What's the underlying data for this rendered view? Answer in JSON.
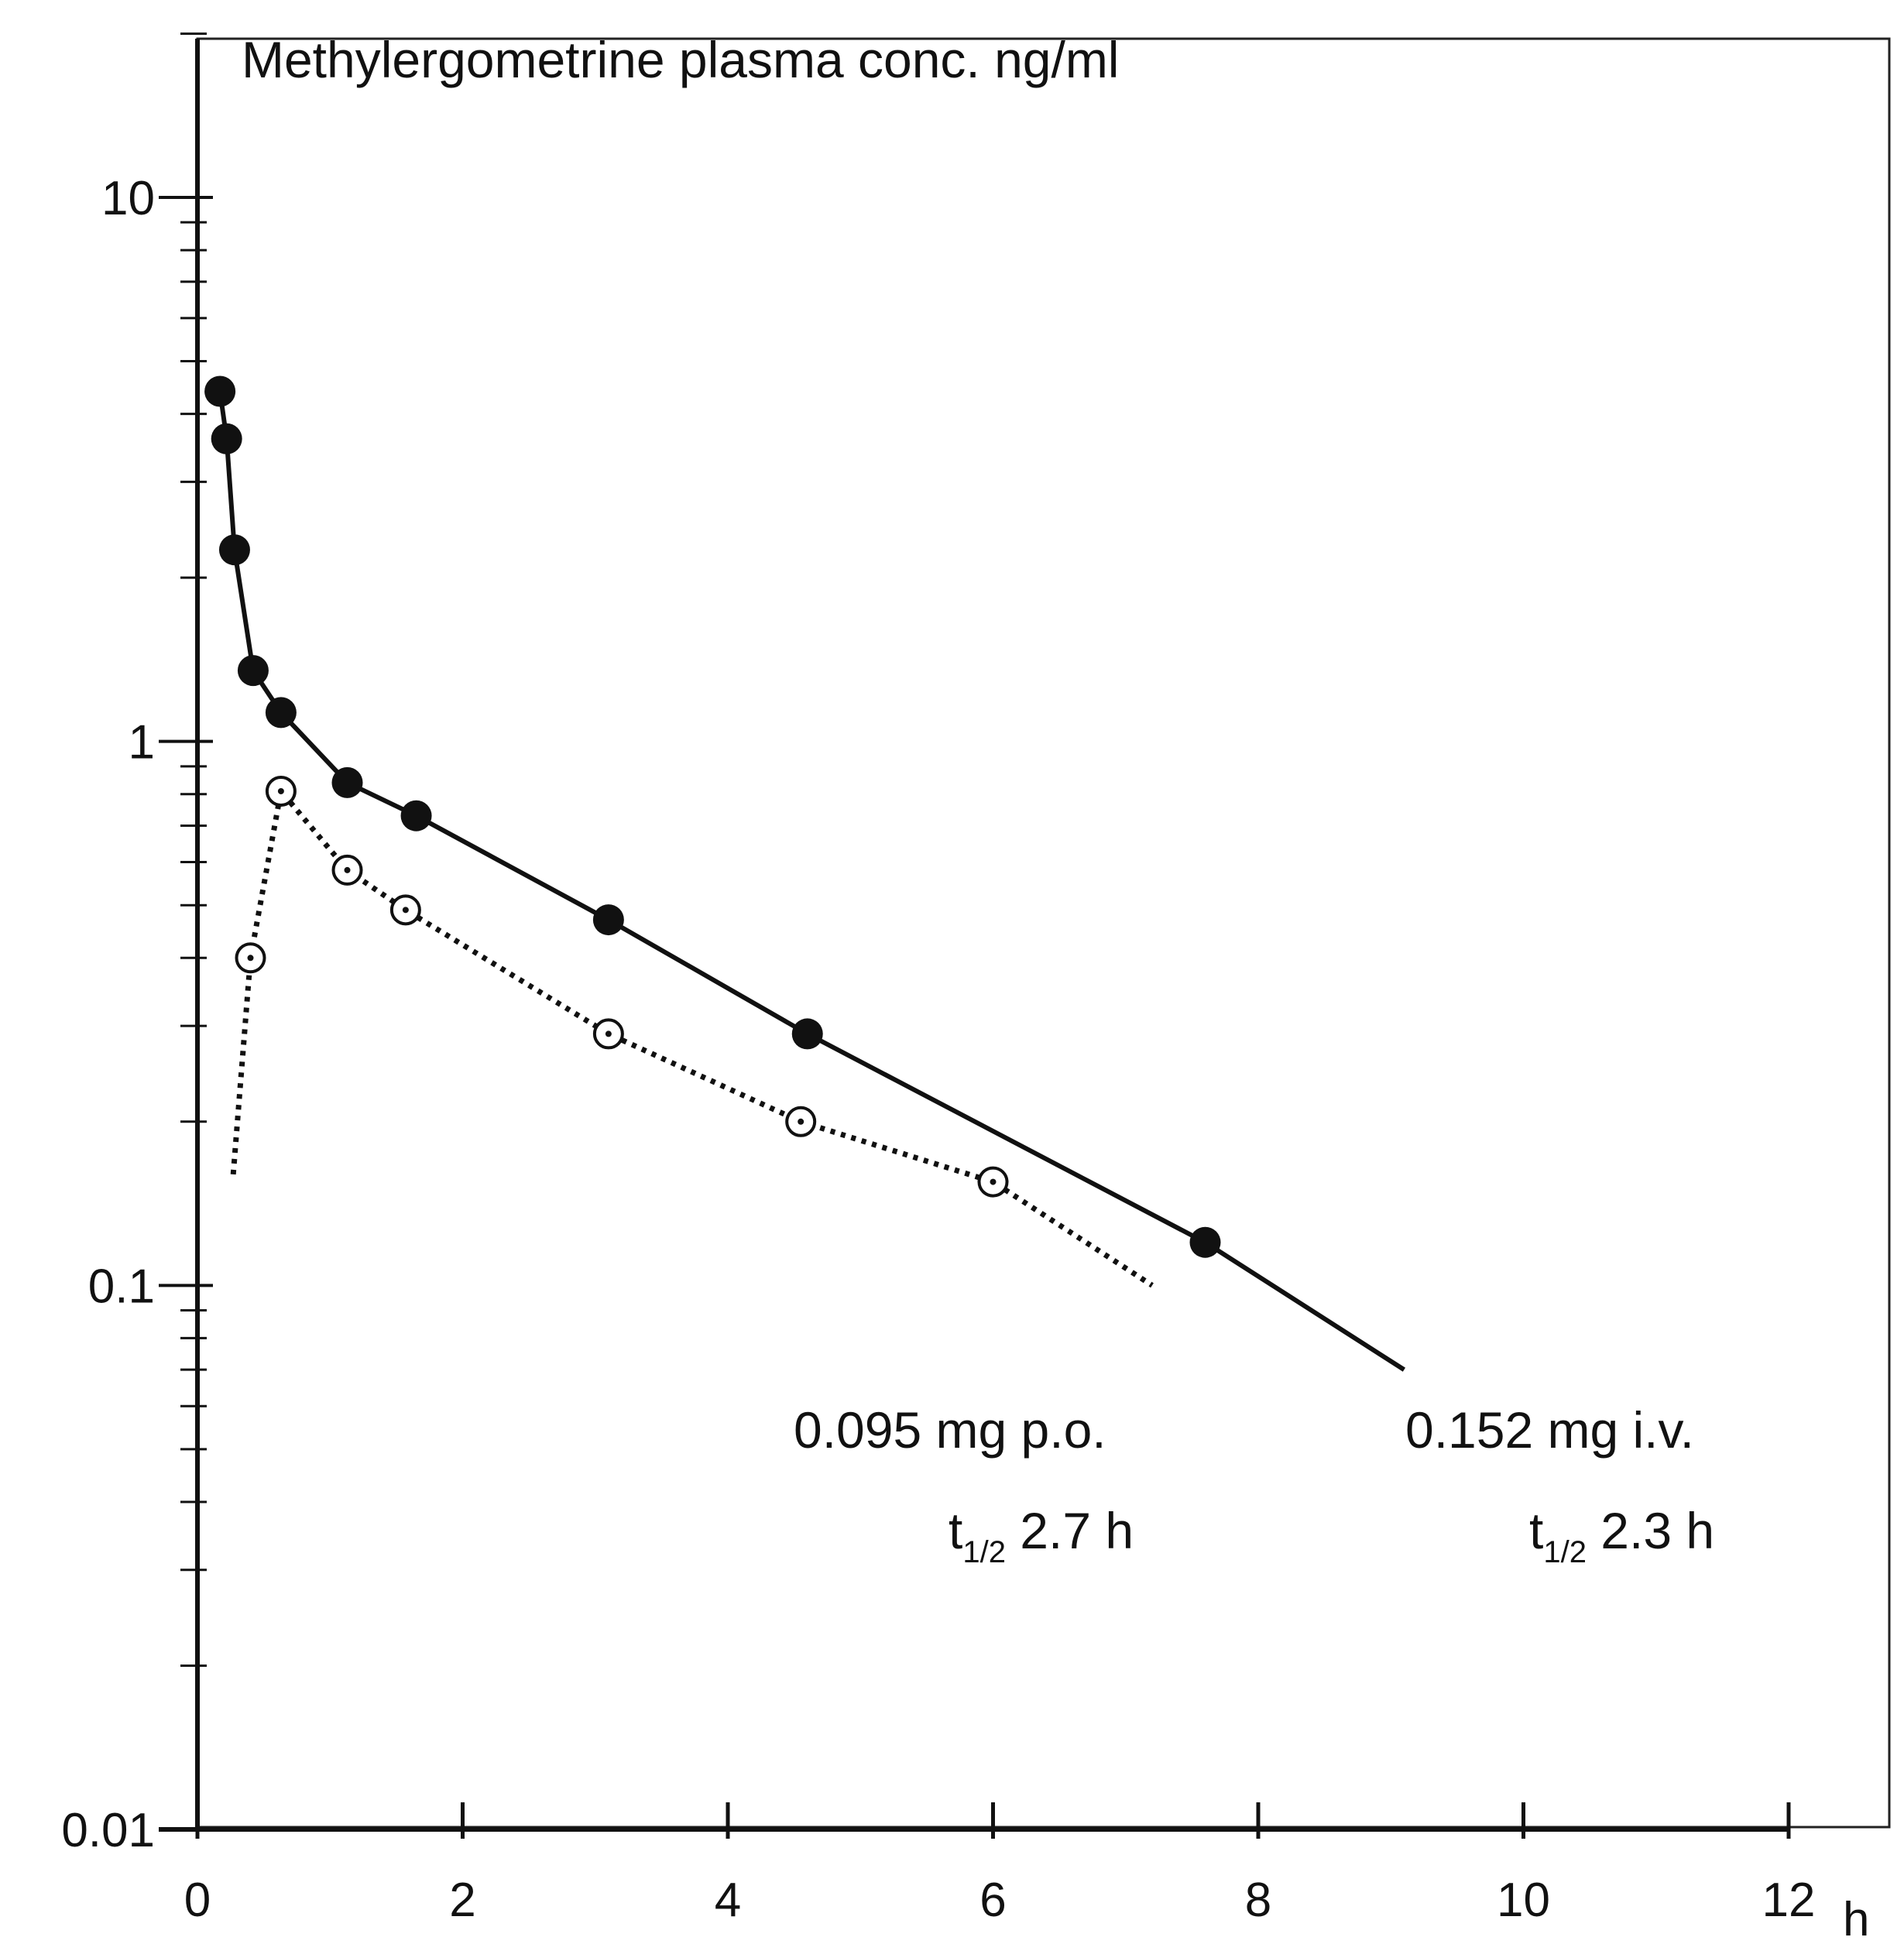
{
  "chart_data": {
    "type": "line",
    "title": "Methylergometrine   plasma   conc. ng/ml",
    "xlabel": "",
    "ylabel": "",
    "x_unit_label": "h",
    "xlim": [
      0,
      12
    ],
    "ylim": [
      0.01,
      20
    ],
    "y_scale": "log",
    "x_ticks": [
      0,
      2,
      4,
      6,
      8,
      10,
      12
    ],
    "x_tick_labels": [
      "0",
      "2",
      "4",
      "6",
      "8",
      "10",
      "12"
    ],
    "y_ticks": [
      0.01,
      0.1,
      1,
      10
    ],
    "y_tick_labels": [
      "0.01",
      "0.1",
      "1",
      "10"
    ],
    "grid": false,
    "series": [
      {
        "style": "solid",
        "marker": "filled-circle",
        "x": [
          0.17,
          0.22,
          0.28,
          0.42,
          0.63,
          1.13,
          1.65,
          3.1,
          4.6,
          7.6
        ],
        "y": [
          4.4,
          3.6,
          2.25,
          1.35,
          1.13,
          0.84,
          0.73,
          0.47,
          0.29,
          0.12
        ],
        "line_end": [
          9.1,
          0.07
        ]
      },
      {
        "style": "dotted",
        "marker": "open-circle-dot",
        "line_start": [
          0.27,
          0.16
        ],
        "x": [
          0.4,
          0.63,
          1.13,
          1.57,
          3.1,
          4.55,
          6.0
        ],
        "y": [
          0.4,
          0.81,
          0.58,
          0.49,
          0.29,
          0.2,
          0.155
        ],
        "line_end": [
          7.2,
          0.1
        ]
      }
    ],
    "annotations": [
      {
        "line1": "0.095 mg p.o.",
        "t_prefix": "t",
        "t_sub": "1/2",
        "t_value": " 2.7 h"
      },
      {
        "line1": "0.152 mg i.v.",
        "t_prefix": "t",
        "t_sub": "1/2",
        "t_value": " 2.3 h"
      }
    ]
  }
}
